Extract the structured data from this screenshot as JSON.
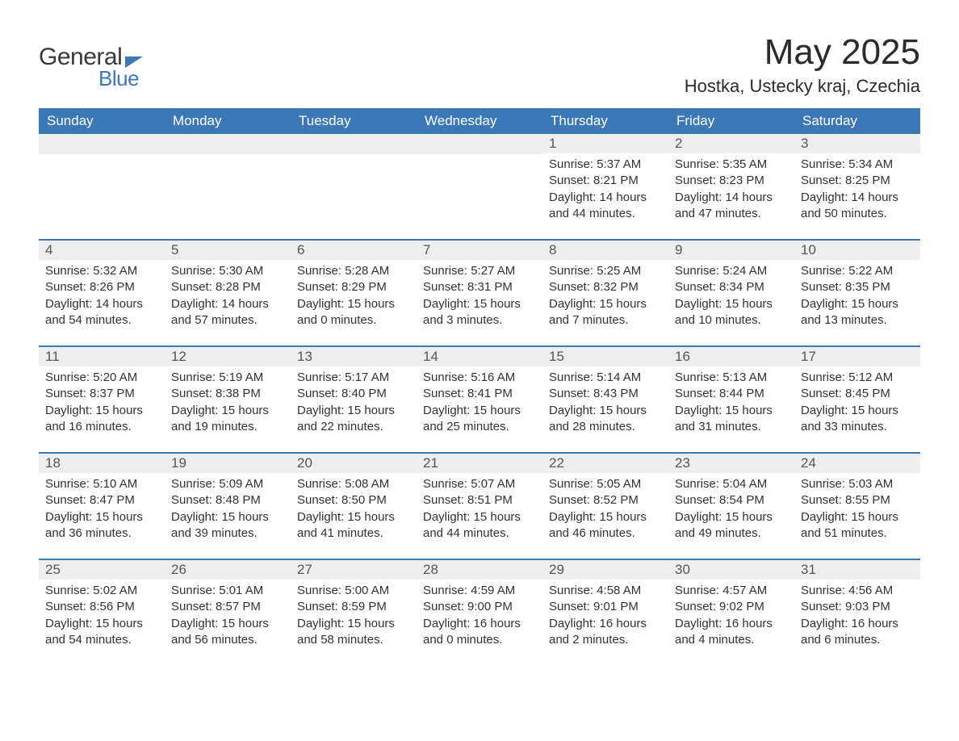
{
  "brand": {
    "word1": "General",
    "word2": "Blue",
    "accent_color": "#3b78b5"
  },
  "title": "May 2025",
  "location": "Hostka, Ustecky kraj, Czechia",
  "colors": {
    "header_bg": "#3b78b5",
    "header_text": "#ffffff",
    "daynum_bg": "#eeeeee",
    "daynum_text": "#565656",
    "body_text": "#333333",
    "row_border": "#3b78b5",
    "page_bg": "#ffffff"
  },
  "typography": {
    "title_fontsize": 44,
    "location_fontsize": 22,
    "dow_fontsize": 17,
    "daynum_fontsize": 17,
    "body_fontsize": 15
  },
  "days_of_week": [
    "Sunday",
    "Monday",
    "Tuesday",
    "Wednesday",
    "Thursday",
    "Friday",
    "Saturday"
  ],
  "weeks": [
    [
      null,
      null,
      null,
      null,
      {
        "n": "1",
        "sunrise": "5:37 AM",
        "sunset": "8:21 PM",
        "dl_h": "14",
        "dl_m": "44"
      },
      {
        "n": "2",
        "sunrise": "5:35 AM",
        "sunset": "8:23 PM",
        "dl_h": "14",
        "dl_m": "47"
      },
      {
        "n": "3",
        "sunrise": "5:34 AM",
        "sunset": "8:25 PM",
        "dl_h": "14",
        "dl_m": "50"
      }
    ],
    [
      {
        "n": "4",
        "sunrise": "5:32 AM",
        "sunset": "8:26 PM",
        "dl_h": "14",
        "dl_m": "54"
      },
      {
        "n": "5",
        "sunrise": "5:30 AM",
        "sunset": "8:28 PM",
        "dl_h": "14",
        "dl_m": "57"
      },
      {
        "n": "6",
        "sunrise": "5:28 AM",
        "sunset": "8:29 PM",
        "dl_h": "15",
        "dl_m": "0"
      },
      {
        "n": "7",
        "sunrise": "5:27 AM",
        "sunset": "8:31 PM",
        "dl_h": "15",
        "dl_m": "3"
      },
      {
        "n": "8",
        "sunrise": "5:25 AM",
        "sunset": "8:32 PM",
        "dl_h": "15",
        "dl_m": "7"
      },
      {
        "n": "9",
        "sunrise": "5:24 AM",
        "sunset": "8:34 PM",
        "dl_h": "15",
        "dl_m": "10"
      },
      {
        "n": "10",
        "sunrise": "5:22 AM",
        "sunset": "8:35 PM",
        "dl_h": "15",
        "dl_m": "13"
      }
    ],
    [
      {
        "n": "11",
        "sunrise": "5:20 AM",
        "sunset": "8:37 PM",
        "dl_h": "15",
        "dl_m": "16"
      },
      {
        "n": "12",
        "sunrise": "5:19 AM",
        "sunset": "8:38 PM",
        "dl_h": "15",
        "dl_m": "19"
      },
      {
        "n": "13",
        "sunrise": "5:17 AM",
        "sunset": "8:40 PM",
        "dl_h": "15",
        "dl_m": "22"
      },
      {
        "n": "14",
        "sunrise": "5:16 AM",
        "sunset": "8:41 PM",
        "dl_h": "15",
        "dl_m": "25"
      },
      {
        "n": "15",
        "sunrise": "5:14 AM",
        "sunset": "8:43 PM",
        "dl_h": "15",
        "dl_m": "28"
      },
      {
        "n": "16",
        "sunrise": "5:13 AM",
        "sunset": "8:44 PM",
        "dl_h": "15",
        "dl_m": "31"
      },
      {
        "n": "17",
        "sunrise": "5:12 AM",
        "sunset": "8:45 PM",
        "dl_h": "15",
        "dl_m": "33"
      }
    ],
    [
      {
        "n": "18",
        "sunrise": "5:10 AM",
        "sunset": "8:47 PM",
        "dl_h": "15",
        "dl_m": "36"
      },
      {
        "n": "19",
        "sunrise": "5:09 AM",
        "sunset": "8:48 PM",
        "dl_h": "15",
        "dl_m": "39"
      },
      {
        "n": "20",
        "sunrise": "5:08 AM",
        "sunset": "8:50 PM",
        "dl_h": "15",
        "dl_m": "41"
      },
      {
        "n": "21",
        "sunrise": "5:07 AM",
        "sunset": "8:51 PM",
        "dl_h": "15",
        "dl_m": "44"
      },
      {
        "n": "22",
        "sunrise": "5:05 AM",
        "sunset": "8:52 PM",
        "dl_h": "15",
        "dl_m": "46"
      },
      {
        "n": "23",
        "sunrise": "5:04 AM",
        "sunset": "8:54 PM",
        "dl_h": "15",
        "dl_m": "49"
      },
      {
        "n": "24",
        "sunrise": "5:03 AM",
        "sunset": "8:55 PM",
        "dl_h": "15",
        "dl_m": "51"
      }
    ],
    [
      {
        "n": "25",
        "sunrise": "5:02 AM",
        "sunset": "8:56 PM",
        "dl_h": "15",
        "dl_m": "54"
      },
      {
        "n": "26",
        "sunrise": "5:01 AM",
        "sunset": "8:57 PM",
        "dl_h": "15",
        "dl_m": "56"
      },
      {
        "n": "27",
        "sunrise": "5:00 AM",
        "sunset": "8:59 PM",
        "dl_h": "15",
        "dl_m": "58"
      },
      {
        "n": "28",
        "sunrise": "4:59 AM",
        "sunset": "9:00 PM",
        "dl_h": "16",
        "dl_m": "0"
      },
      {
        "n": "29",
        "sunrise": "4:58 AM",
        "sunset": "9:01 PM",
        "dl_h": "16",
        "dl_m": "2"
      },
      {
        "n": "30",
        "sunrise": "4:57 AM",
        "sunset": "9:02 PM",
        "dl_h": "16",
        "dl_m": "4"
      },
      {
        "n": "31",
        "sunrise": "4:56 AM",
        "sunset": "9:03 PM",
        "dl_h": "16",
        "dl_m": "6"
      }
    ]
  ],
  "labels": {
    "sunrise_prefix": "Sunrise: ",
    "sunset_prefix": "Sunset: ",
    "daylight_prefix": "Daylight: ",
    "hours_word": " hours and ",
    "minutes_word": " minutes."
  }
}
